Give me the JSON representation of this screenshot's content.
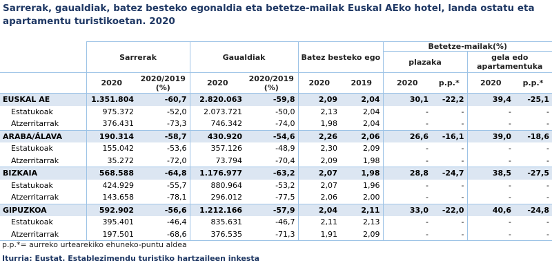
{
  "title": "Sarrerak, gaualdiak, batez besteko egonaldia eta betetze-mailak Euskal AEko hotel, landa ostatu eta apartamentu turistikoetan. 2020",
  "table": {
    "header": {
      "sarrerak": "Sarrerak",
      "gaualdiak": "Gaualdiak",
      "egonaldia": "Batez besteko egonaldia",
      "betetze": "Betetze-mailak(%)",
      "plazaka": "plazaka",
      "gela": "gela edo apartamentuka",
      "sub": [
        "2020",
        "2020/2019 (%)",
        "2020",
        "2020/2019 (%)",
        "2020",
        "2019",
        "2020",
        "p.p.*",
        "2020",
        "p.p.*"
      ]
    },
    "rows": [
      [
        "EUSKAL AE",
        "1.351.804",
        "-60,7",
        "2.820.063",
        "-59,8",
        "2,09",
        "2,04",
        "30,1",
        "-22,2",
        "39,4",
        "-25,1"
      ],
      [
        "Estatukoak",
        "975.372",
        "-52,0",
        "2.073.721",
        "-50,0",
        "2,13",
        "2,04",
        "-",
        "-",
        "-",
        "-"
      ],
      [
        "Atzerritarrak",
        "376.431",
        "-73,3",
        "746.342",
        "-74,0",
        "1,98",
        "2,04",
        "-",
        "-",
        "-",
        "-"
      ],
      [
        "ARABA/ÁLAVA",
        "190.314",
        "-58,7",
        "430.920",
        "-54,6",
        "2,26",
        "2,06",
        "26,6",
        "-16,1",
        "39,0",
        "-18,6"
      ],
      [
        "Estatukoak",
        "155.042",
        "-53,6",
        "357.126",
        "-48,9",
        "2,30",
        "2,09",
        "-",
        "-",
        "-",
        "-"
      ],
      [
        "Atzerritarrak",
        "35.272",
        "-72,0",
        "73.794",
        "-70,4",
        "2,09",
        "1,98",
        "-",
        "-",
        "-",
        "-"
      ],
      [
        "BIZKAIA",
        "568.588",
        "-64,8",
        "1.176.977",
        "-63,2",
        "2,07",
        "1,98",
        "28,8",
        "-24,7",
        "38,5",
        "-27,5"
      ],
      [
        "Estatukoak",
        "424.929",
        "-55,7",
        "880.964",
        "-53,2",
        "2,07",
        "1,96",
        "-",
        "-",
        "-",
        "-"
      ],
      [
        "Atzerritarrak",
        "143.658",
        "-78,1",
        "296.012",
        "-77,5",
        "2,06",
        "2,00",
        "-",
        "-",
        "-",
        "-"
      ],
      [
        "GIPUZKOA",
        "592.902",
        "-56,6",
        "1.212.166",
        "-57,9",
        "2,04",
        "2,11",
        "33,0",
        "-22,0",
        "40,6",
        "-24,8"
      ],
      [
        "Estatukoak",
        "395.401",
        "-46,4",
        "835.631",
        "-46,7",
        "2,11",
        "2,13",
        "-",
        "-",
        "-",
        "-"
      ],
      [
        "Atzerritarrak",
        "197.501",
        "-68,6",
        "376.535",
        "-71,3",
        "1,91",
        "2,09",
        "-",
        "-",
        "-",
        "-"
      ]
    ]
  },
  "footnote": "p.p.*= aurreko urtearekiko ehuneko-puntu aldea",
  "source": "Iturria: Eustat. Establezimendu turistiko hartzaileen inkesta"
}
